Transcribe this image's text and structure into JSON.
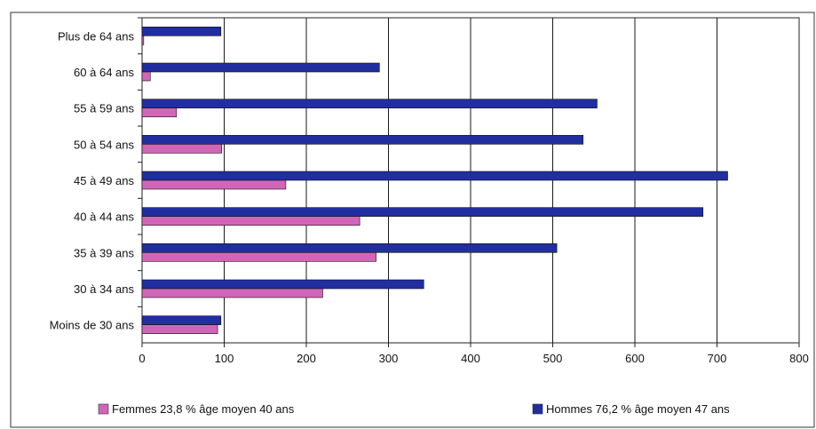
{
  "chart_data": {
    "type": "bar",
    "orientation": "horizontal",
    "categories": [
      "Moins de 30 ans",
      "30 à 34 ans",
      "35 à 39 ans",
      "40 à 44 ans",
      "45 à 49 ans",
      "50 à 54 ans",
      "55 à 59 ans",
      "60 à 64 ans",
      "Plus de 64 ans"
    ],
    "series": [
      {
        "name": "Femmes 23,8 %  âge moyen 40 ans",
        "color": "#d066b8",
        "values": [
          92,
          220,
          285,
          265,
          175,
          97,
          42,
          10,
          2
        ]
      },
      {
        "name": "Hommes 76,2 %  âge moyen 47 ans",
        "color": "#202ea0",
        "values": [
          96,
          343,
          505,
          683,
          713,
          537,
          554,
          289,
          96
        ]
      }
    ],
    "xlim": [
      0,
      800
    ],
    "xticks": [
      0,
      100,
      200,
      300,
      400,
      500,
      600,
      700,
      800
    ],
    "grid": true,
    "legend_position": "bottom"
  }
}
